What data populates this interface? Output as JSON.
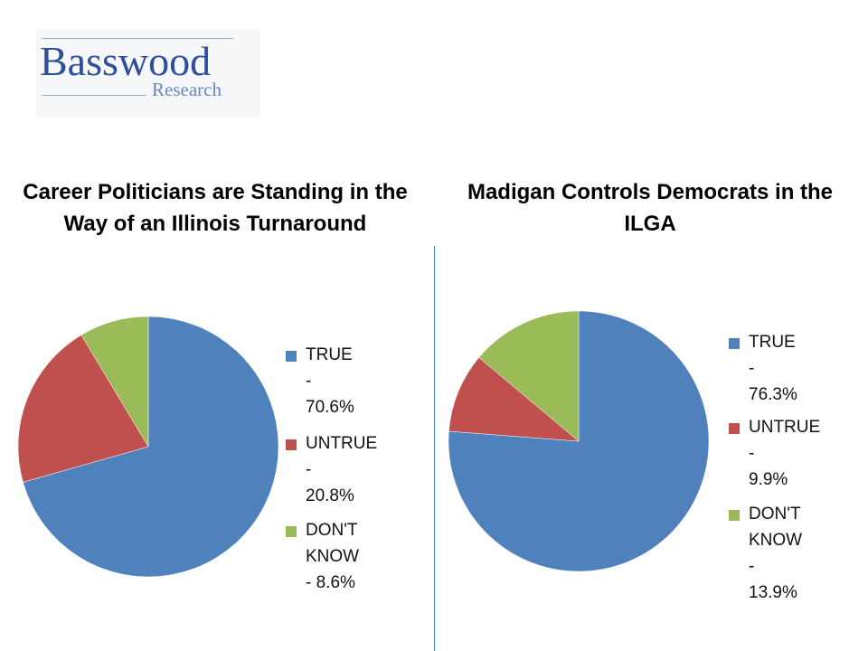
{
  "logo": {
    "main": "Basswood",
    "sub": "Research"
  },
  "colors": {
    "true": "#4f81bd",
    "untrue": "#c0504d",
    "dont_know": "#9bbb59"
  },
  "chart_data": [
    {
      "type": "pie",
      "title": "Career Politicians are Standing in the Way of an Illinois Turnaround",
      "categories": [
        "TRUE",
        "UNTRUE",
        "DON'T KNOW"
      ],
      "values": [
        70.6,
        20.8,
        8.6
      ],
      "legend_labels": [
        "TRUE - 70.6%",
        "UNTRUE -\n20.8%",
        "DON'T KNOW\n- 8.6%"
      ],
      "legend_position": "right"
    },
    {
      "type": "pie",
      "title": "Madigan Controls Democrats in the ILGA",
      "categories": [
        "TRUE",
        "UNTRUE",
        "DON'T KNOW"
      ],
      "values": [
        76.3,
        9.9,
        13.9
      ],
      "legend_labels": [
        "TRUE - 76.3%",
        "UNTRUE -\n9.9%",
        "DON'T\nKNOW -\n13.9%"
      ],
      "legend_position": "right"
    }
  ]
}
